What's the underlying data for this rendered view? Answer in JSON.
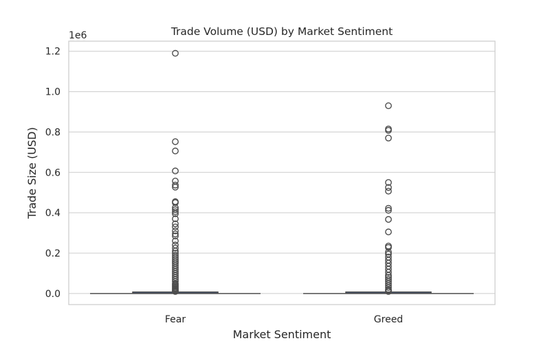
{
  "chart_data": {
    "type": "box",
    "title": "Trade Volume (USD) by Market Sentiment",
    "xlabel": "Market Sentiment",
    "ylabel": "Trade Size (USD)",
    "y_offset_label": "1e6",
    "categories": [
      "Fear",
      "Greed"
    ],
    "ylim": [
      -0.055,
      1.25
    ],
    "yticks": [
      0.0,
      0.2,
      0.4,
      0.6,
      0.8,
      1.0,
      1.2
    ],
    "ytick_labels": [
      "0.0",
      "0.2",
      "0.4",
      "0.6",
      "0.8",
      "1.0",
      "1.2"
    ],
    "grid": true,
    "legend": "none",
    "colors": {
      "box_line": "#4d4d4d",
      "grid": "#cccccc",
      "frame": "#cccccc"
    },
    "boxes": [
      {
        "category": "Fear",
        "median": 0.001,
        "q1": 0.0002,
        "q3": 0.004,
        "whisker_low": 0.0,
        "whisker_high": 0.009,
        "outliers": [
          1.19,
          0.752,
          0.706,
          0.607,
          0.557,
          0.537,
          0.527,
          0.455,
          0.45,
          0.425,
          0.415,
          0.405,
          0.395,
          0.37,
          0.345,
          0.33,
          0.31,
          0.295,
          0.285,
          0.26,
          0.24,
          0.225,
          0.21,
          0.2,
          0.19,
          0.18,
          0.17,
          0.16,
          0.15,
          0.14,
          0.13,
          0.12,
          0.11,
          0.1,
          0.09,
          0.08,
          0.07,
          0.06,
          0.05,
          0.045,
          0.04,
          0.035,
          0.03,
          0.025,
          0.02,
          0.015,
          0.012,
          0.01
        ]
      },
      {
        "category": "Greed",
        "median": 0.001,
        "q1": 0.0002,
        "q3": 0.004,
        "whisker_low": 0.0,
        "whisker_high": 0.009,
        "outliers": [
          0.93,
          0.815,
          0.808,
          0.77,
          0.55,
          0.525,
          0.507,
          0.422,
          0.412,
          0.367,
          0.305,
          0.235,
          0.228,
          0.205,
          0.195,
          0.18,
          0.165,
          0.15,
          0.135,
          0.12,
          0.105,
          0.09,
          0.08,
          0.07,
          0.06,
          0.05,
          0.04,
          0.03,
          0.02,
          0.015,
          0.01
        ]
      }
    ]
  }
}
